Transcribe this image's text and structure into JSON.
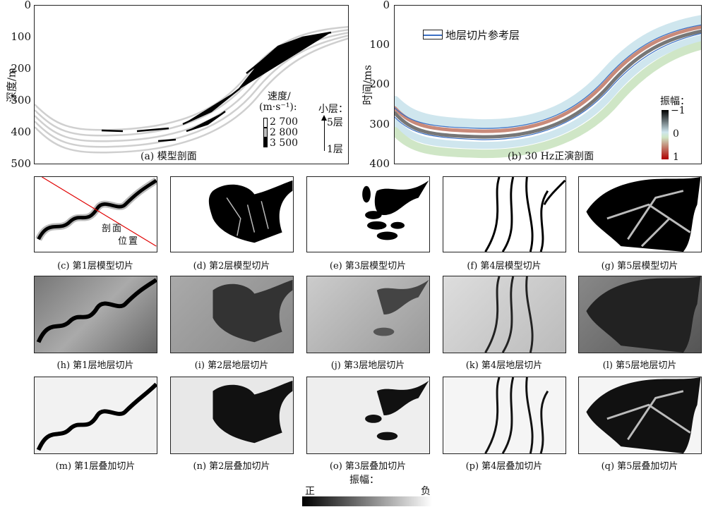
{
  "panel_a": {
    "caption": "(a) 模型剖面",
    "ylabel": "深度/m",
    "yticks": [
      "0",
      "100",
      "200",
      "300",
      "400",
      "500"
    ],
    "legend_title_1": "速度/",
    "legend_title_2": "(m·s⁻¹):",
    "legend_items": [
      {
        "label": "2 700",
        "color": "#ffffff"
      },
      {
        "label": "2 800",
        "color": "#bfbfbf"
      },
      {
        "label": "3 500",
        "color": "#000000"
      }
    ],
    "layer_title": "小层：",
    "layer_top": "5层",
    "layer_bottom": "1层"
  },
  "panel_b": {
    "caption": "(b) 30 Hz正演剖面",
    "ylabel": "时间/ms",
    "yticks": [
      "0",
      "100",
      "200",
      "300",
      "400"
    ],
    "legend_label": "地层切片参考层",
    "legend_color": "#3a6fc4",
    "colorbar_title": "振幅：",
    "colorbar_ticks": [
      "−1",
      "0",
      "1"
    ]
  },
  "row_model": {
    "captions": [
      "(c) 第1层模型切片",
      "(d) 第2层模型切片",
      "(e) 第3层模型切片",
      "(f) 第4层模型切片",
      "(g) 第5层模型切片"
    ],
    "section_label": [
      "剖",
      "面",
      "位",
      "置"
    ],
    "section_line_color": "#e00000"
  },
  "row_strata": {
    "captions": [
      "(h) 第1层地层切片",
      "(i) 第2层地层切片",
      "(j) 第3层地层切片",
      "(k) 第4层地层切片",
      "(l) 第5层地层切片"
    ]
  },
  "row_stack": {
    "captions": [
      "(m) 第1层叠加切片",
      "(n) 第2层叠加切片",
      "(o) 第3层叠加切片",
      "(p) 第4层叠加切片",
      "(q) 第5层叠加切片"
    ]
  },
  "bottom_colorbar": {
    "title": "振幅：",
    "left": "正",
    "right": "负"
  }
}
